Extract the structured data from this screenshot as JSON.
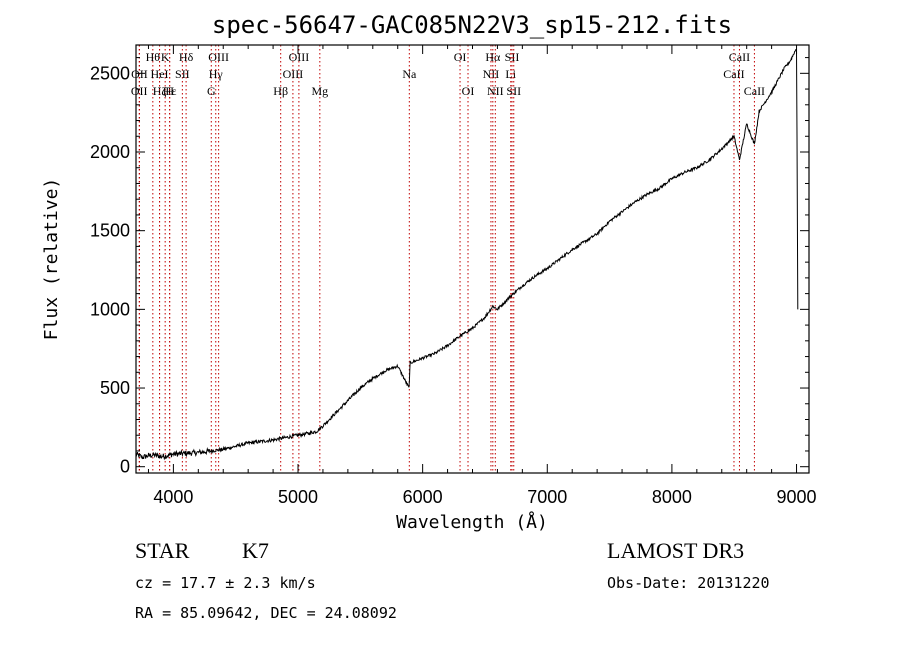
{
  "chart_data": {
    "type": "line",
    "title": "spec-56647-GAC085N22V3_sp15-212.fits",
    "xlabel": "Wavelength (Å)",
    "ylabel": "Flux (relative)",
    "xlim": [
      3700,
      9100
    ],
    "ylim": [
      -40,
      2680
    ],
    "xticks": [
      4000,
      5000,
      6000,
      7000,
      8000,
      9000
    ],
    "yticks": [
      0,
      500,
      1000,
      1500,
      2000,
      2500
    ],
    "series": [
      {
        "name": "flux",
        "x": [
          3700,
          3750,
          3800,
          3850,
          3900,
          3950,
          4000,
          4100,
          4200,
          4300,
          4400,
          4500,
          4600,
          4700,
          4800,
          4900,
          5000,
          5100,
          5150,
          5200,
          5300,
          5400,
          5500,
          5600,
          5700,
          5800,
          5890,
          5900,
          6000,
          6100,
          6200,
          6300,
          6400,
          6500,
          6563,
          6600,
          6700,
          6800,
          6900,
          7000,
          7100,
          7200,
          7300,
          7400,
          7500,
          7600,
          7700,
          7800,
          7900,
          8000,
          8100,
          8200,
          8300,
          8400,
          8498,
          8542,
          8600,
          8662,
          8700,
          8800,
          8900,
          8950,
          9000,
          9010
        ],
        "y": [
          80,
          60,
          70,
          75,
          65,
          70,
          80,
          85,
          90,
          100,
          110,
          130,
          150,
          160,
          170,
          185,
          200,
          215,
          225,
          260,
          340,
          420,
          500,
          560,
          610,
          640,
          500,
          660,
          690,
          720,
          770,
          830,
          880,
          950,
          1020,
          1000,
          1080,
          1150,
          1210,
          1260,
          1320,
          1380,
          1430,
          1480,
          1560,
          1620,
          1680,
          1730,
          1770,
          1830,
          1870,
          1900,
          1950,
          2020,
          2100,
          1950,
          2180,
          2050,
          2260,
          2380,
          2530,
          2580,
          2660,
          1000
        ]
      }
    ],
    "lines": [
      {
        "wave": 3835,
        "label": "Hθ",
        "row": 0
      },
      {
        "wave": 3728,
        "label": "OII",
        "row": 1
      },
      {
        "wave": 3726,
        "label": "OII",
        "row": 2
      },
      {
        "wave": 3889,
        "label": "Hζ",
        "row": 2
      },
      {
        "wave": 3889,
        "label": "HeI",
        "row": 1
      },
      {
        "wave": 3934,
        "label": "K",
        "row": 0
      },
      {
        "wave": 3970,
        "label": "Hε",
        "row": 2
      },
      {
        "wave": 3970,
        "label": "H",
        "row": 2
      },
      {
        "wave": 4072,
        "label": "SII",
        "row": 1
      },
      {
        "wave": 4102,
        "label": "Hδ",
        "row": 0
      },
      {
        "wave": 4304,
        "label": "G",
        "row": 2
      },
      {
        "wave": 4340,
        "label": "Hγ",
        "row": 1
      },
      {
        "wave": 4363,
        "label": "OIII",
        "row": 0
      },
      {
        "wave": 4861,
        "label": "Hβ",
        "row": 2
      },
      {
        "wave": 4959,
        "label": "OIII",
        "row": 1
      },
      {
        "wave": 5007,
        "label": "OIII",
        "row": 0
      },
      {
        "wave": 5175,
        "label": "Mg",
        "row": 2
      },
      {
        "wave": 5893,
        "label": "Na",
        "row": 1
      },
      {
        "wave": 6300,
        "label": "OI",
        "row": 0
      },
      {
        "wave": 6364,
        "label": "OI",
        "row": 2
      },
      {
        "wave": 6548,
        "label": "NII",
        "row": 1
      },
      {
        "wave": 6563,
        "label": "Hα",
        "row": 0
      },
      {
        "wave": 6583,
        "label": "NII",
        "row": 2
      },
      {
        "wave": 6707,
        "label": "Li",
        "row": 1
      },
      {
        "wave": 6717,
        "label": "SII",
        "row": 0
      },
      {
        "wave": 6731,
        "label": "SII",
        "row": 2
      },
      {
        "wave": 8498,
        "label": "CaII",
        "row": 1
      },
      {
        "wave": 8542,
        "label": "CaII",
        "row": 0
      },
      {
        "wave": 8662,
        "label": "CaII",
        "row": 2
      }
    ]
  },
  "info": {
    "class_label": "STAR",
    "subclass": "K7",
    "survey": "LAMOST DR3",
    "cz": "cz = 17.7 ± 2.3 km/s",
    "obs_date": "Obs-Date: 20131220",
    "coords": "RA =  85.09642, DEC =  24.08092"
  },
  "colors": {
    "axis": "#000000",
    "spectrum": "#000000",
    "line_marker": "#c00000"
  }
}
